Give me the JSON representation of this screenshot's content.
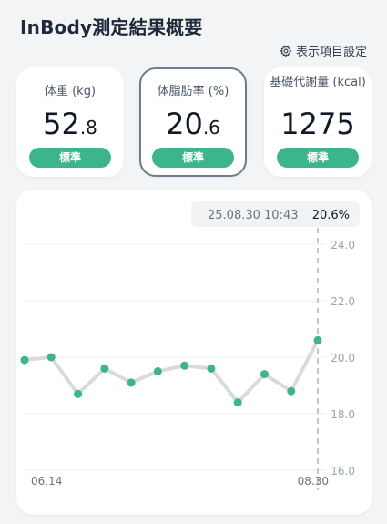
{
  "header": {
    "title": "InBody測定結果概要",
    "settings_label": "表示項目設定"
  },
  "cards": [
    {
      "label": "体重 (kg)",
      "int": "52",
      "dec": ".8",
      "badge": "標準"
    },
    {
      "label": "体脂肪率 (%)",
      "int": "20",
      "dec": ".6",
      "badge": "標準"
    },
    {
      "label": "基礎代謝量 (kcal)",
      "int": "1275",
      "dec": "",
      "badge": "標準"
    }
  ],
  "colors": {
    "accent_green": "#3db58a",
    "point_green": "#3db58a",
    "line_gray": "#d8dadd",
    "selected_border": "#6b7c8f"
  },
  "chart_data": {
    "type": "line",
    "series": [
      {
        "values": [
          19.9,
          20.0,
          18.7,
          19.6,
          19.1,
          19.5,
          19.7,
          19.6,
          18.4,
          19.4,
          18.8,
          20.6
        ]
      }
    ],
    "x_start_label": "06.14",
    "x_end_label": "08.30",
    "y_ticks": [
      "24.0",
      "22.0",
      "20.0",
      "18.0",
      "16.0"
    ],
    "ylim": [
      16.0,
      24.0
    ],
    "grid": true,
    "tooltip": {
      "date": "25.08.30 10:43",
      "value": "20.6%"
    }
  }
}
